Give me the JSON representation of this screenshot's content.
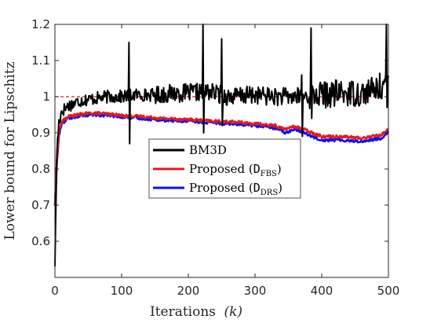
{
  "chart_data": {
    "type": "line",
    "xlabel": "Iterations",
    "xlabel_var": "(k)",
    "ylabel": "Lower bound for Lipschitz",
    "xlim": [
      0,
      500
    ],
    "ylim": [
      0.5,
      1.2
    ],
    "xticks": [
      0,
      100,
      200,
      300,
      400,
      500
    ],
    "yticks": [
      0.6,
      0.7,
      0.8,
      0.9,
      1.0,
      1.1,
      1.2
    ],
    "ytick_labels": [
      "0.6",
      "0.7",
      "0.8",
      "0.9",
      "1",
      "1.1",
      "1.2"
    ],
    "reference_line": {
      "y": 1.0,
      "style": "dashed",
      "color": "#e41a1c"
    },
    "legend_position": "center",
    "series": [
      {
        "name": "BM3D",
        "color": "#000000",
        "anchors_x": [
          0,
          3,
          6,
          10,
          20,
          40,
          60,
          80,
          100,
          120,
          150,
          180,
          200,
          230,
          260,
          300,
          330,
          360,
          400,
          430,
          460,
          480,
          500
        ],
        "anchors_y": [
          0.54,
          0.85,
          0.93,
          0.96,
          0.975,
          0.99,
          0.995,
          1.0,
          1.0,
          1.005,
          1.005,
          1.01,
          1.01,
          1.015,
          1.0,
          1.005,
          1.0,
          1.0,
          1.005,
          1.01,
          1.01,
          1.02,
          1.04
        ],
        "spikes": [
          [
            111,
            1.15
          ],
          [
            112,
            0.87
          ],
          [
            222,
            1.2
          ],
          [
            223,
            0.9
          ],
          [
            250,
            1.16
          ],
          [
            251,
            0.92
          ],
          [
            370,
            1.06
          ],
          [
            371,
            0.89
          ],
          [
            384,
            1.19
          ],
          [
            385,
            0.94
          ],
          [
            497,
            1.2
          ],
          [
            498,
            0.97
          ]
        ]
      },
      {
        "name": "Proposed (D_FBS)",
        "label_main": "Proposed (",
        "label_sym": "D",
        "label_sub": "FBS",
        "label_close": ")",
        "color": "#e41a1c",
        "anchors_x": [
          0,
          3,
          6,
          10,
          20,
          40,
          60,
          80,
          100,
          130,
          160,
          200,
          240,
          270,
          300,
          330,
          345,
          360,
          380,
          400,
          430,
          460,
          490,
          500
        ],
        "anchors_y": [
          0.7,
          0.83,
          0.9,
          0.93,
          0.945,
          0.952,
          0.955,
          0.952,
          0.948,
          0.945,
          0.94,
          0.937,
          0.932,
          0.93,
          0.925,
          0.92,
          0.91,
          0.918,
          0.905,
          0.89,
          0.89,
          0.885,
          0.895,
          0.91
        ]
      },
      {
        "name": "Proposed (D_DRS)",
        "label_main": "Proposed (",
        "label_sym": "D",
        "label_sub": "DRS",
        "label_close": ")",
        "color": "#1010ee",
        "anchors_x": [
          0,
          3,
          6,
          10,
          20,
          40,
          60,
          80,
          100,
          130,
          160,
          200,
          240,
          270,
          300,
          330,
          345,
          360,
          380,
          400,
          430,
          460,
          490,
          500
        ],
        "anchors_y": [
          0.7,
          0.82,
          0.89,
          0.925,
          0.94,
          0.948,
          0.95,
          0.948,
          0.944,
          0.94,
          0.935,
          0.932,
          0.927,
          0.925,
          0.92,
          0.913,
          0.9,
          0.91,
          0.895,
          0.88,
          0.88,
          0.876,
          0.885,
          0.905
        ]
      }
    ]
  }
}
